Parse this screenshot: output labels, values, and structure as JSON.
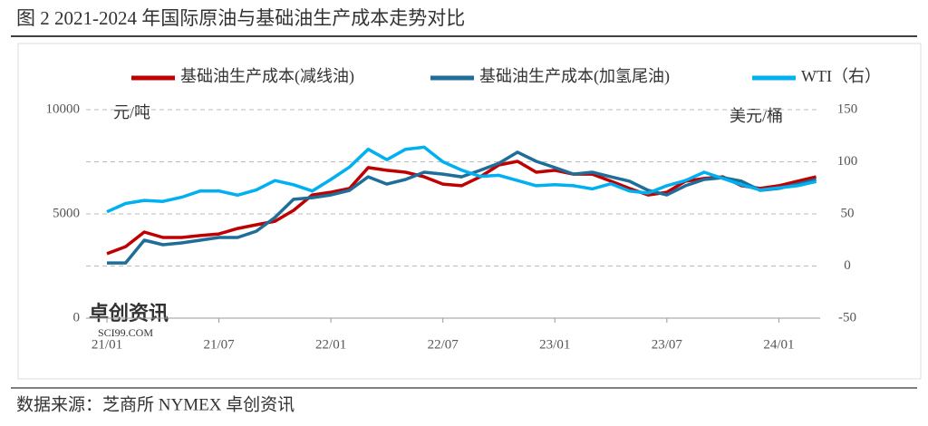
{
  "chart_data": {
    "type": "line",
    "title": "图 2   2021-2024 年国际原油与基础油生产成本走势对比",
    "source": "数据来源：芝商所 NYMEX 卓创资讯",
    "watermark": "卓创资讯",
    "watermark_url": "SCI99.COM",
    "y_label": "元/吨",
    "y2_label": "美元/桶",
    "categories": [
      "21/01",
      null,
      null,
      null,
      null,
      null,
      "21/07",
      null,
      null,
      null,
      null,
      null,
      "22/01",
      null,
      null,
      null,
      null,
      null,
      "22/07",
      null,
      null,
      null,
      null,
      null,
      "23/01",
      null,
      null,
      null,
      null,
      null,
      "23/07",
      null,
      null,
      null,
      null,
      null,
      "24/01",
      null,
      null
    ],
    "ylim": [
      0,
      10000
    ],
    "yticks": [
      0,
      5000,
      10000
    ],
    "y2lim": [
      -50,
      150
    ],
    "y2ticks": [
      -50,
      0,
      50,
      100,
      150
    ],
    "grid": true,
    "legend": "top",
    "series": [
      {
        "name": "基础油生产成本(减线油)",
        "color": "#c00000",
        "values": [
          3090,
          3430,
          4130,
          3870,
          3870,
          3960,
          4040,
          4300,
          4480,
          4650,
          5170,
          5910,
          6040,
          6220,
          7220,
          7090,
          7000,
          6780,
          6430,
          6350,
          6780,
          7350,
          7520,
          7000,
          7090,
          6910,
          6910,
          6570,
          6220,
          5910,
          6040,
          6570,
          6700,
          6780,
          6350,
          6220,
          6350,
          6570,
          6780
        ]
      },
      {
        "name": "基础油生产成本(加氢尾油)",
        "color": "#1f6e99",
        "values": [
          2650,
          2650,
          3740,
          3520,
          3610,
          3740,
          3870,
          3870,
          4170,
          4830,
          5700,
          5780,
          5910,
          6130,
          6780,
          6430,
          6650,
          7000,
          6910,
          6780,
          7090,
          7430,
          7960,
          7520,
          7220,
          6910,
          7000,
          6780,
          6570,
          6130,
          5910,
          6350,
          6650,
          6740,
          6570,
          6130,
          6220,
          6430,
          6650
        ]
      },
      {
        "name": "WTI（右）",
        "color": "#00b0f0",
        "axis": "y2",
        "values": [
          52,
          60,
          63,
          62,
          66,
          72,
          72,
          68,
          73,
          82,
          78,
          72,
          83,
          95,
          112,
          102,
          112,
          114,
          100,
          92,
          86,
          87,
          82,
          77,
          78,
          77,
          74,
          79,
          72,
          70,
          77,
          82,
          90,
          84,
          78,
          73,
          75,
          77,
          81
        ]
      }
    ]
  }
}
